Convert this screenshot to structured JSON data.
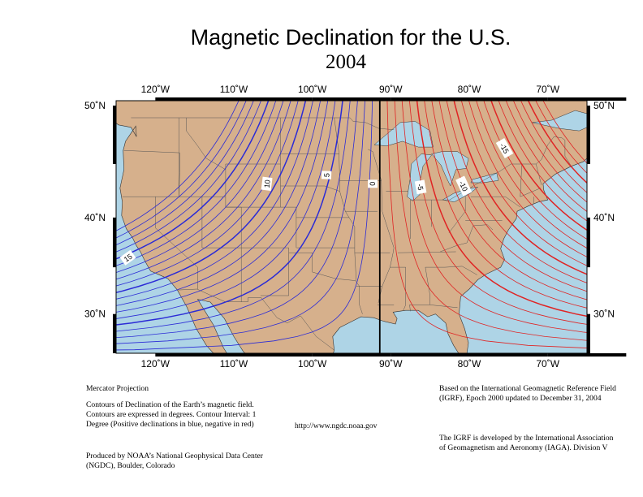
{
  "title": "Magnetic Declination for the U.S.",
  "subtitle": "2004",
  "map": {
    "lon_ticks": [
      "120˚W",
      "110˚W",
      "100˚W",
      "90˚W",
      "80˚W",
      "70˚W"
    ],
    "lat_ticks": [
      "50˚N",
      "40˚N",
      "30˚N"
    ],
    "contour_labels": [
      {
        "text": "15",
        "lon": -123.5,
        "lat": 36.0,
        "angle": -35
      },
      {
        "text": "10",
        "lon": -105.8,
        "lat": 43.2,
        "angle": -83
      },
      {
        "text": "5",
        "lon": -98.2,
        "lat": 44.0,
        "angle": -88
      },
      {
        "text": "0",
        "lon": -92.3,
        "lat": 43.2,
        "angle": 90
      },
      {
        "text": "-5",
        "lon": -86.2,
        "lat": 42.9,
        "angle": 80
      },
      {
        "text": "-10",
        "lon": -80.7,
        "lat": 43.0,
        "angle": 65
      },
      {
        "text": "-15",
        "lon": -75.5,
        "lat": 46.4,
        "angle": 60
      }
    ],
    "colors": {
      "land": "#d6b08c",
      "water": "#aed4e6",
      "positive": "#2b2bd6",
      "negative": "#e02424",
      "zero": "#000000"
    }
  },
  "notes": {
    "left": [
      "Mercator Projection",
      "Contours of Declination of the Earth’s magnetic field.  Contours are expressed in degrees. Contour Interval: 1 Degree (Positive declinations in blue, negative in red)",
      "Produced by NOAA’s National Geophysical Data Center (NGDC), Boulder, Colorado"
    ],
    "center": "http://www.ngdc.noaa.gov",
    "right": [
      "Based on the International Geomagnetic Reference Field (IGRF), Epoch 2000 updated to December 31, 2004",
      "The IGRF is developed by the International Association of Geomagnetism and Aeronomy (IAGA).  Division V"
    ]
  }
}
